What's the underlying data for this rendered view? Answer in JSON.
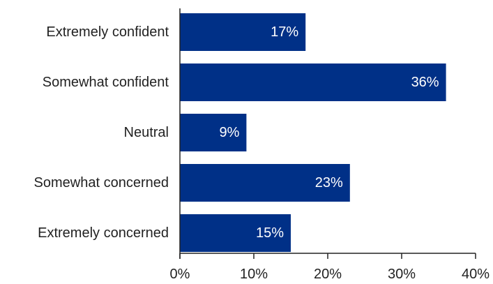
{
  "chart_data": {
    "type": "bar",
    "orientation": "horizontal",
    "categories": [
      "Extremely confident",
      "Somewhat confident",
      "Neutral",
      "Somewhat concerned",
      "Extremely concerned"
    ],
    "values": [
      17,
      36,
      9,
      23,
      15
    ],
    "data_labels": [
      "17%",
      "36%",
      "9%",
      "23%",
      "15%"
    ],
    "xticks": [
      0,
      10,
      20,
      30,
      40
    ],
    "xtick_labels": [
      "0%",
      "10%",
      "20%",
      "30%",
      "40%"
    ],
    "xlim": [
      0,
      40
    ],
    "title": "",
    "xlabel": "",
    "ylabel": "",
    "grid": false,
    "legend": "none",
    "bar_color": "#003087",
    "axis_color": "#222222"
  }
}
